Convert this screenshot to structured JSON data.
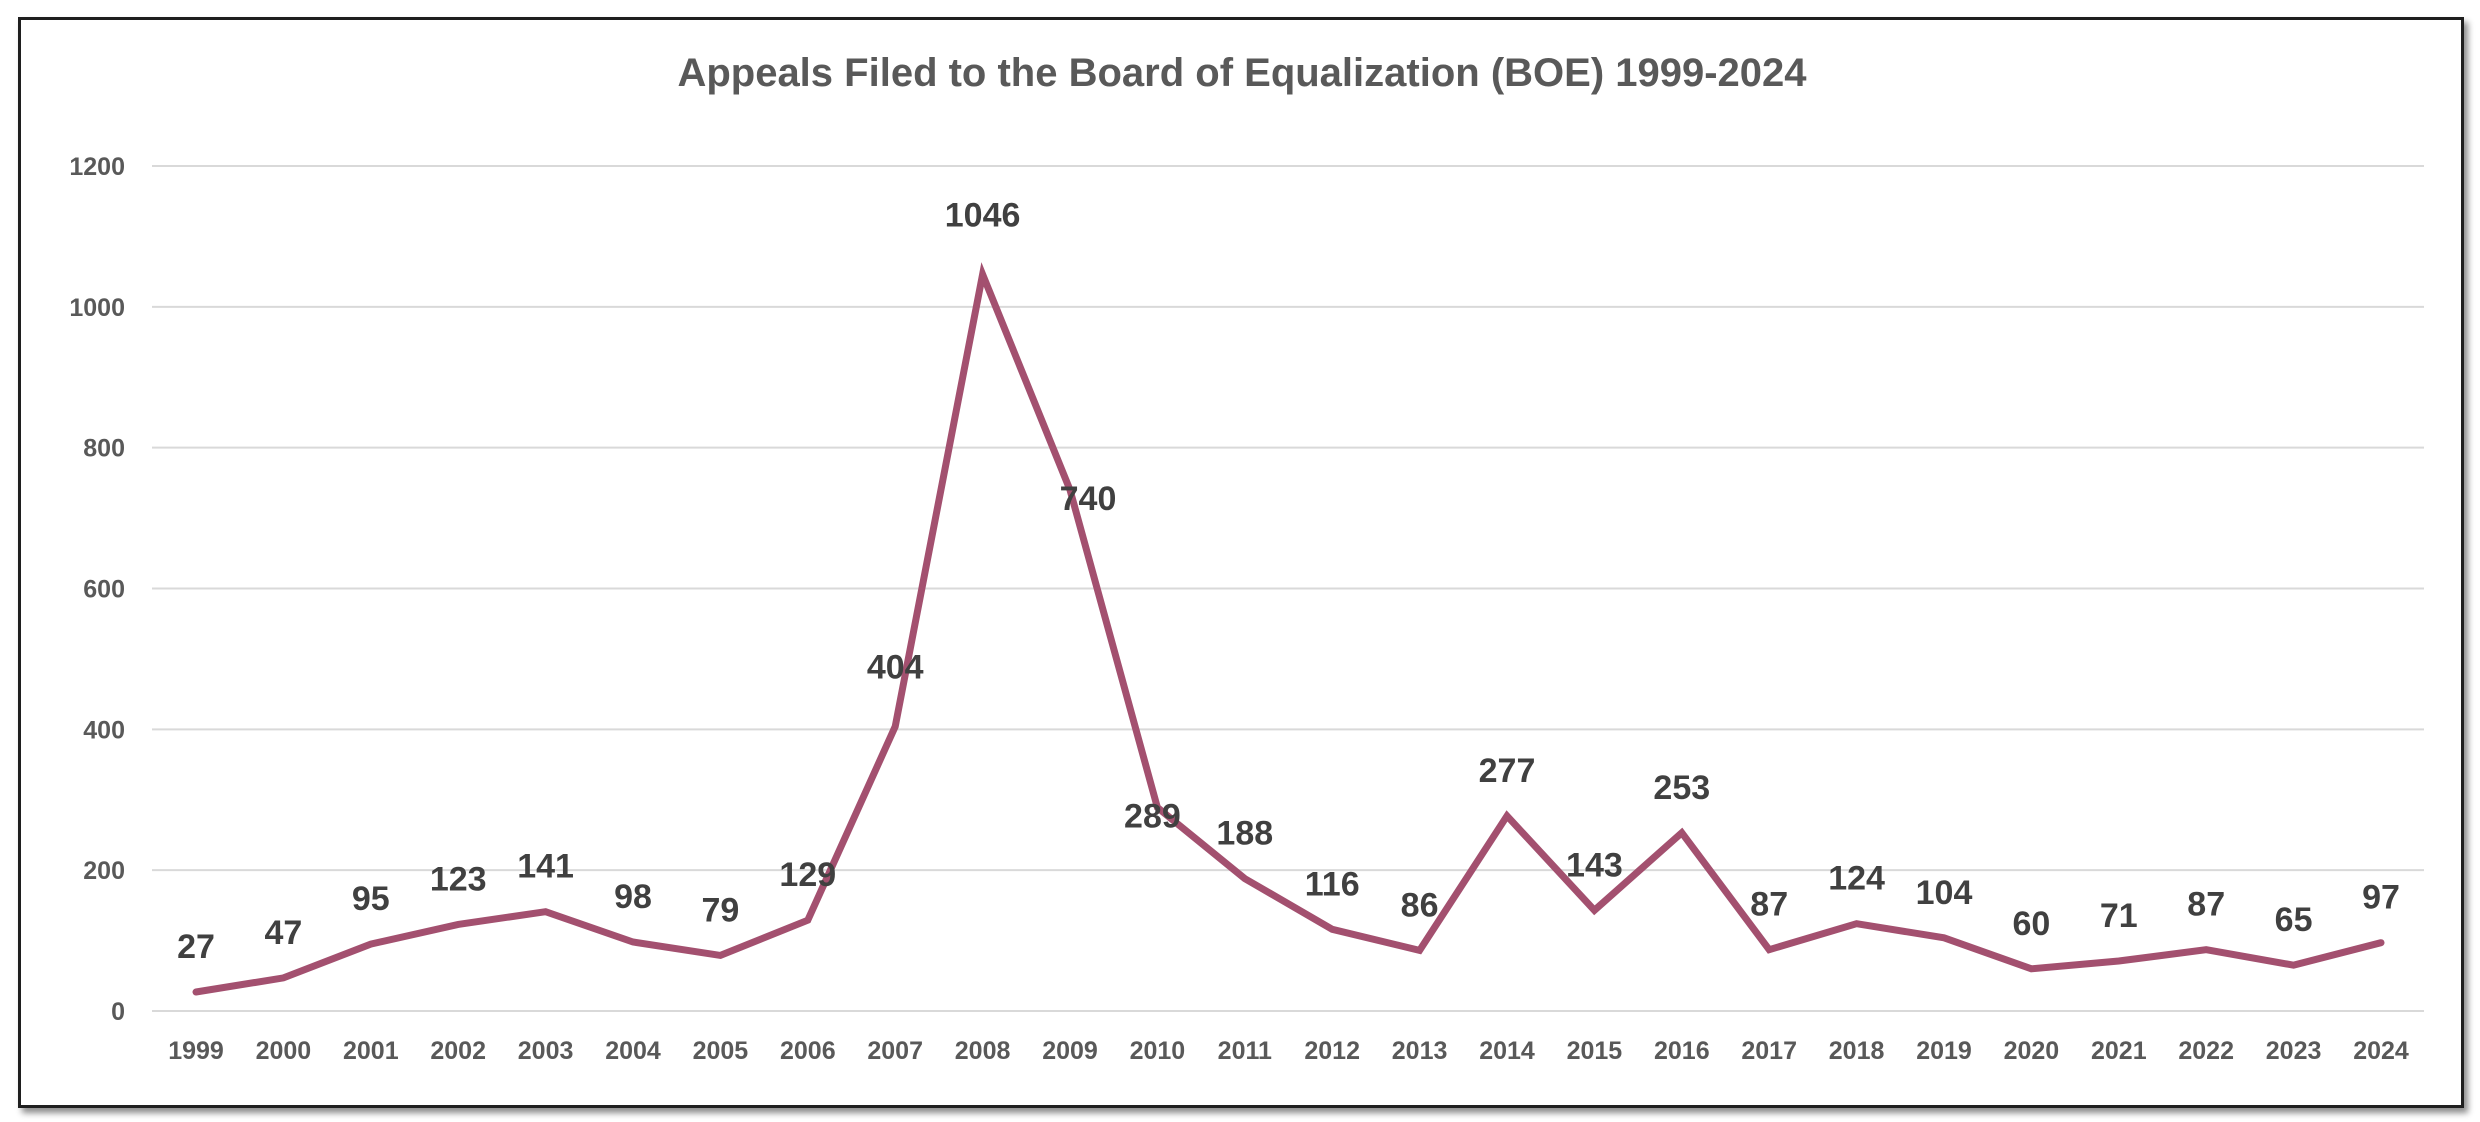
{
  "chart_data": {
    "type": "line",
    "title": "Appeals Filed to the Board of Equalization (BOE) 1999-2024",
    "xlabel": "",
    "ylabel": "",
    "categories": [
      "1999",
      "2000",
      "2001",
      "2002",
      "2003",
      "2004",
      "2005",
      "2006",
      "2007",
      "2008",
      "2009",
      "2010",
      "2011",
      "2012",
      "2013",
      "2014",
      "2015",
      "2016",
      "2017",
      "2018",
      "2019",
      "2020",
      "2021",
      "2022",
      "2023",
      "2024"
    ],
    "series": [
      {
        "values": [
          27,
          47,
          95,
          123,
          141,
          98,
          79,
          129,
          404,
          1046,
          740,
          289,
          188,
          116,
          86,
          277,
          143,
          253,
          87,
          124,
          104,
          60,
          71,
          87,
          65,
          97
        ],
        "color": "#a3506f"
      }
    ],
    "ylim": [
      0,
      1200
    ],
    "yticks": [
      0,
      200,
      400,
      600,
      800,
      1000,
      1200
    ],
    "grid": true,
    "legend": "none",
    "data_labels": true
  }
}
